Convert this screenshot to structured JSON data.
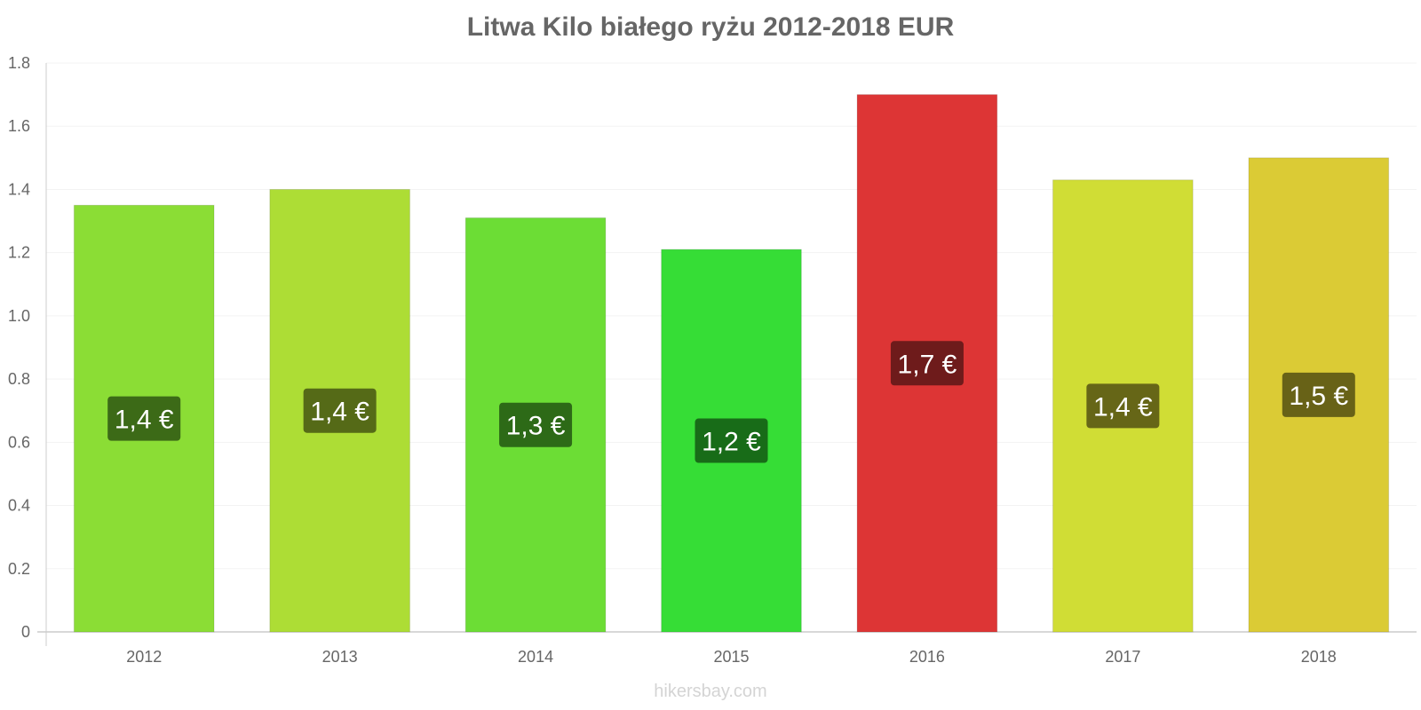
{
  "chart_data": {
    "type": "bar",
    "title": "Litwa Kilo białego ryżu 2012-2018 EUR",
    "xlabel": "",
    "ylabel": "",
    "categories": [
      "2012",
      "2013",
      "2014",
      "2015",
      "2016",
      "2017",
      "2018"
    ],
    "values": [
      1.35,
      1.4,
      1.31,
      1.21,
      1.7,
      1.43,
      1.5
    ],
    "data_labels": [
      "1,4 €",
      "1,4 €",
      "1,3 €",
      "1,2 €",
      "1,7 €",
      "1,4 €",
      "1,5 €"
    ],
    "ylim": [
      0,
      1.8
    ],
    "yticks": [
      "0",
      "0.2",
      "0.4",
      "0.6",
      "0.8",
      "1.0",
      "1.2",
      "1.4",
      "1.6",
      "1.8"
    ],
    "bar_colors": [
      "#8bdd35",
      "#addd35",
      "#6cdd35",
      "#36dd36",
      "#dd3535",
      "#d0dd35",
      "#dbcb35"
    ],
    "label_bg_colors": [
      "#3c6a17",
      "#556a17",
      "#2d6a17",
      "#186c18",
      "#6e1b1b",
      "#666617",
      "#686217"
    ],
    "grid": true,
    "legend": "none"
  },
  "watermark": "hikersbay.com"
}
